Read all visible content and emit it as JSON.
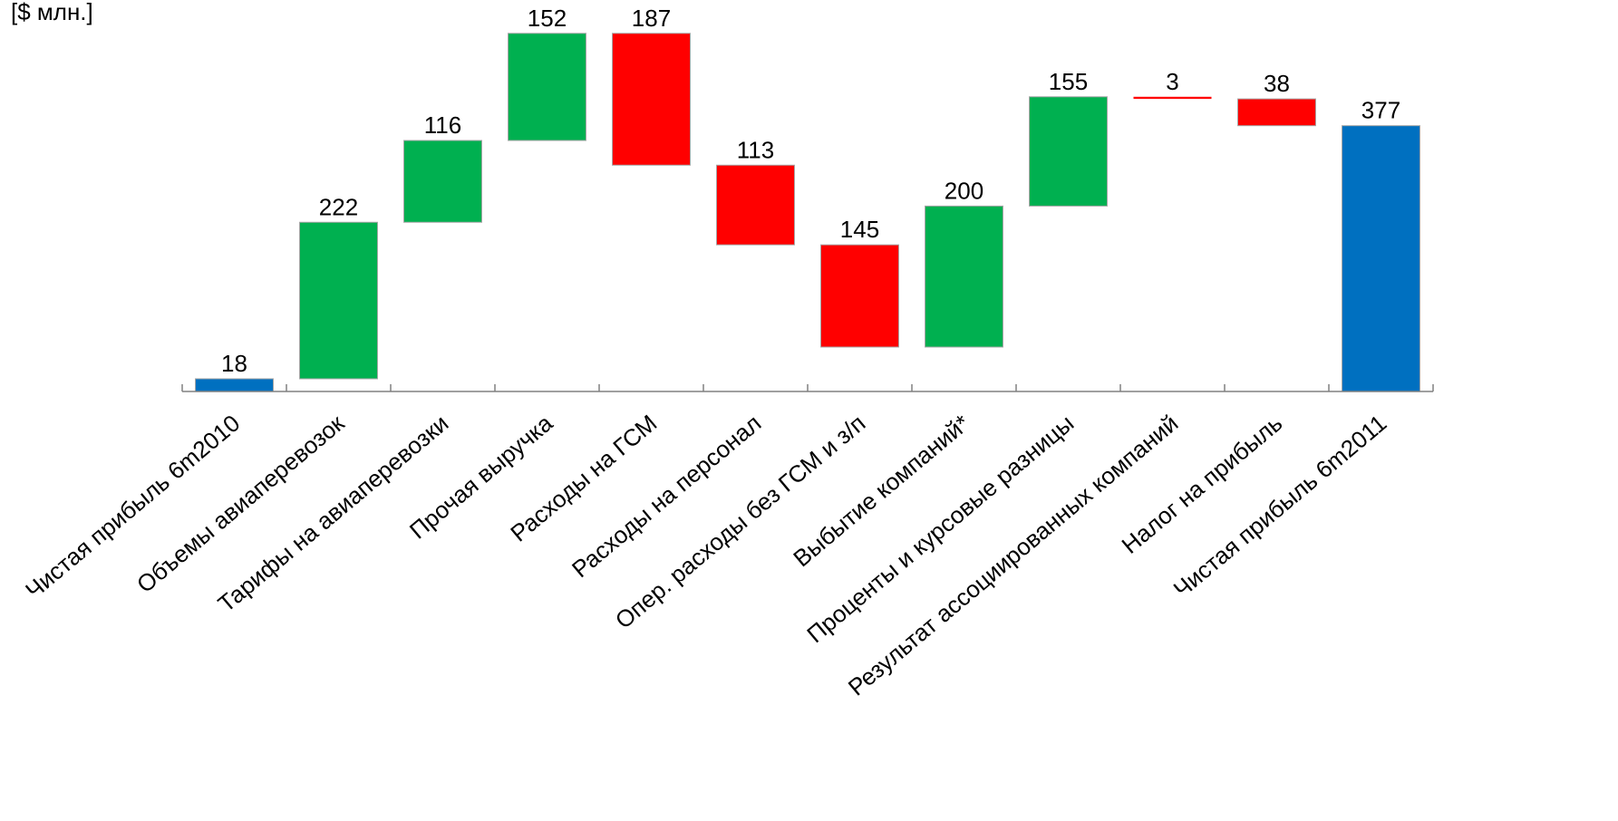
{
  "chart_data": {
    "type": "bar",
    "subtype": "waterfall",
    "unit_label": "[$ млн.]",
    "categories": [
      "Чистая прибыль 6m2010",
      "Объемы авиаперевозок",
      "Тарифы на авиаперевозки",
      "Прочая выручка",
      "Расходы на ГСМ",
      "Расходы на персонал",
      "Опер. расходы без ГСМ и з/п",
      "Выбытие компаний*",
      "Проценты и курсовые разницы",
      "Результат ассоциированных компаний",
      "Налог на прибыль",
      "Чистая прибыль 6m2011"
    ],
    "values": [
      18,
      222,
      116,
      152,
      -187,
      -113,
      -145,
      200,
      155,
      -3,
      -38,
      377
    ],
    "value_labels": [
      "18",
      "222",
      "116",
      "152",
      "187",
      "113",
      "145",
      "200",
      "155",
      "3",
      "38",
      "377"
    ],
    "bar_kinds": [
      "total",
      "increase",
      "increase",
      "increase",
      "decrease",
      "decrease",
      "decrease",
      "increase",
      "increase",
      "decrease",
      "decrease",
      "total"
    ],
    "ylim": [
      0,
      510
    ],
    "grid": false,
    "legend": "none",
    "colors": {
      "total": "#0070C0",
      "increase": "#00B050",
      "decrease": "#FF0000",
      "bar_outline": "#A6A6A6",
      "axis": "#808080",
      "text": "#000000"
    }
  }
}
